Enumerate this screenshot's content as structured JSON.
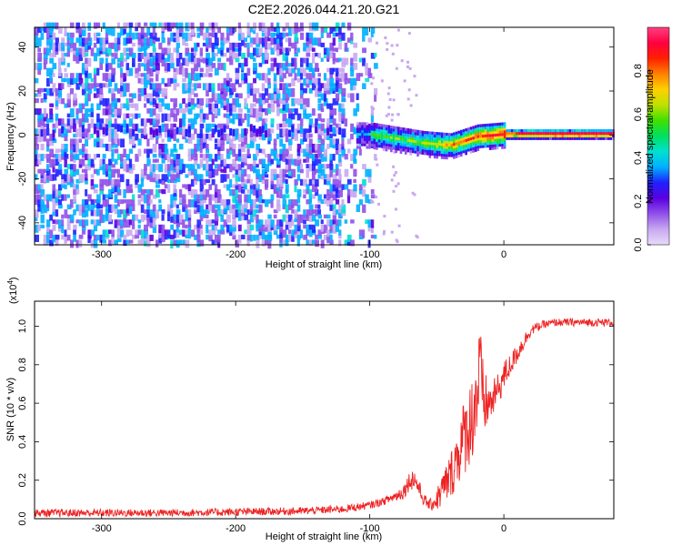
{
  "title": "C2E2.2026.044.21.20.G21",
  "colorbar": {
    "label": "Normalized spectral amplitude",
    "ticks": [
      "0.0",
      "0.2",
      "0.4",
      "0.6",
      "0.8"
    ],
    "tick_values": [
      0.0,
      0.2,
      0.4,
      0.6,
      0.8
    ],
    "range": [
      0,
      1
    ],
    "colors": [
      "#e8dcf8",
      "#c8a8f0",
      "#9050e8",
      "#5a00e0",
      "#2020ff",
      "#00b0ff",
      "#00e0d0",
      "#00e060",
      "#40e000",
      "#c0e000",
      "#ffd000",
      "#ff8000",
      "#ff2000",
      "#ff0040",
      "#ff4080"
    ]
  },
  "chart_data": [
    {
      "type": "heatmap",
      "title": "C2E2.2026.044.21.20.G21",
      "xlabel": "Height of straight line (km)",
      "ylabel": "Frequency (Hz)",
      "xlim": [
        -350,
        82
      ],
      "ylim": [
        -50,
        49
      ],
      "xticks": [
        -300,
        -200,
        -100,
        0
      ],
      "xtick_labels": [
        "-300",
        "-200",
        "-100",
        "0"
      ],
      "yticks": [
        -40,
        -20,
        0,
        20,
        40
      ],
      "ytick_labels": [
        "-40",
        "-20",
        "0",
        "20",
        "40"
      ],
      "zlim": [
        0,
        1
      ],
      "description_points": [
        {
          "x": -100,
          "freq": 0,
          "amp": 0.5
        },
        {
          "x": -80,
          "freq": -2,
          "amp": 0.5
        },
        {
          "x": -60,
          "freq": -4,
          "amp": 0.55
        },
        {
          "x": -40,
          "freq": -5,
          "amp": 0.7
        },
        {
          "x": -20,
          "freq": -1,
          "amp": 0.8
        },
        {
          "x": 0,
          "freq": 0,
          "amp": 0.9
        },
        {
          "x": 40,
          "freq": 0,
          "amp": 0.95
        },
        {
          "x": 80,
          "freq": 0,
          "amp": 0.95
        }
      ]
    },
    {
      "type": "line",
      "xlabel": "Height of straight line (km)",
      "ylabel": "SNR (10 * v/v)",
      "multiplier_label": "(x10",
      "multiplier_exp": "4",
      "multiplier_close": ")",
      "xlim": [
        -350,
        82
      ],
      "ylim": [
        0,
        1.13
      ],
      "xticks": [
        -300,
        -200,
        -100,
        0
      ],
      "xtick_labels": [
        "-300",
        "-200",
        "-100",
        "0"
      ],
      "yticks": [
        0.0,
        0.2,
        0.4,
        0.6,
        0.8,
        1.0
      ],
      "ytick_labels": [
        "0.0",
        "0.2",
        "0.4",
        "0.6",
        "0.8",
        "1.0"
      ],
      "series": [
        {
          "name": "SNR",
          "color": "#ee2222",
          "x": [
            -350,
            -300,
            -250,
            -200,
            -150,
            -120,
            -100,
            -90,
            -80,
            -75,
            -70,
            -67,
            -64,
            -60,
            -55,
            -50,
            -45,
            -40,
            -35,
            -30,
            -25,
            -20,
            -18,
            -15,
            -10,
            -5,
            0,
            5,
            10,
            15,
            20,
            30,
            40,
            60,
            82
          ],
          "y": [
            0.03,
            0.03,
            0.03,
            0.035,
            0.04,
            0.05,
            0.07,
            0.09,
            0.12,
            0.14,
            0.2,
            0.21,
            0.17,
            0.1,
            0.07,
            0.1,
            0.16,
            0.22,
            0.32,
            0.42,
            0.5,
            0.64,
            0.78,
            0.6,
            0.6,
            0.66,
            0.74,
            0.8,
            0.86,
            0.92,
            0.98,
            1.01,
            1.02,
            1.02,
            1.02
          ],
          "noise": [
            0.02,
            0.02,
            0.02,
            0.02,
            0.02,
            0.02,
            0.02,
            0.02,
            0.03,
            0.04,
            0.05,
            0.06,
            0.05,
            0.03,
            0.03,
            0.06,
            0.1,
            0.12,
            0.16,
            0.2,
            0.22,
            0.28,
            0.25,
            0.18,
            0.1,
            0.09,
            0.08,
            0.06,
            0.05,
            0.04,
            0.03,
            0.02,
            0.02,
            0.02,
            0.02
          ]
        }
      ]
    }
  ]
}
